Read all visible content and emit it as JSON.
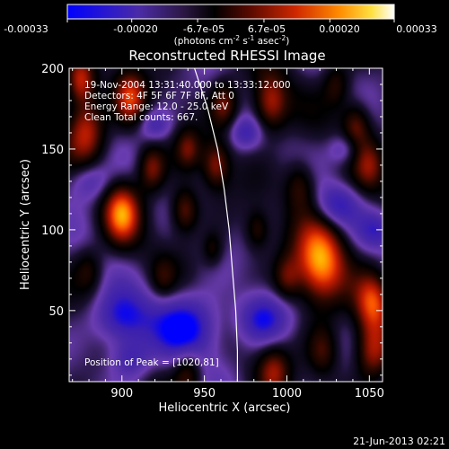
{
  "colorbar": {
    "tick_labels": [
      "-0.00033",
      "-0.00020",
      "-6.7e-05",
      "6.7e-05",
      "0.00020",
      "0.00033"
    ],
    "tick_values": [
      -0.00033,
      -0.0002,
      -6.7e-05,
      6.7e-05,
      0.0002,
      0.00033
    ],
    "range": [
      -0.00033,
      0.00033
    ],
    "units_main": "(photons cm",
    "units_sup1": "-2",
    "units_mid": " s",
    "units_sup2": "-1",
    "units_tail": " asec",
    "units_sup3": "-2",
    "units_close": ")",
    "colormap": [
      "#0000ff",
      "#3a1fb0",
      "#4b2ba6",
      "#6a3cb0",
      "#1a1030",
      "#000000",
      "#2a0800",
      "#7a0f00",
      "#c81e00",
      "#ff5a00",
      "#ffb000",
      "#ffff80",
      "#ffffff"
    ]
  },
  "chart_data": {
    "type": "heatmap",
    "title": "Reconstructed RHESSI Image",
    "xlabel": "Heliocentric X (arcsec)",
    "ylabel": "Heliocentric Y (arcsec)",
    "xlim": [
      868,
      1058
    ],
    "ylim": [
      6,
      200
    ],
    "x_ticks": [
      900,
      950,
      1000,
      1050
    ],
    "y_ticks": [
      50,
      100,
      150,
      200
    ],
    "annotations": [
      "19-Nov-2004 13:31:40.000 to 13:33:12.000",
      "Detectors: 4F 5F 6F 7F 8F, Att 0",
      "Energy Range: 12.0 - 25.0 keV",
      "Clean    Total counts: 667."
    ],
    "peak_label": "Position of Peak = [1020,81]",
    "peak": [
      1020,
      81
    ],
    "limb_curve": [
      [
        944,
        200
      ],
      [
        952,
        175
      ],
      [
        958,
        150
      ],
      [
        962,
        125
      ],
      [
        965,
        100
      ],
      [
        967,
        75
      ],
      [
        969,
        50
      ],
      [
        970,
        25
      ],
      [
        970,
        6
      ]
    ],
    "sources": [
      [
        1020,
        81,
        0.00033,
        14
      ],
      [
        900,
        110,
        0.00028,
        10
      ],
      [
        878,
        162,
        0.00024,
        11
      ],
      [
        905,
        182,
        0.00022,
        9
      ],
      [
        875,
        192,
        0.00022,
        8
      ],
      [
        938,
        112,
        0.00018,
        8
      ],
      [
        918,
        138,
        0.00018,
        8
      ],
      [
        940,
        150,
        0.00014,
        7
      ],
      [
        957,
        140,
        0.00018,
        8
      ],
      [
        962,
        178,
        0.00016,
        8
      ],
      [
        1008,
        128,
        0.00014,
        9
      ],
      [
        1050,
        140,
        0.00014,
        9
      ],
      [
        1052,
        55,
        0.00024,
        10
      ],
      [
        1052,
        25,
        0.0002,
        10
      ],
      [
        1022,
        25,
        0.00014,
        9
      ],
      [
        992,
        12,
        0.00016,
        9
      ],
      [
        940,
        12,
        0.00014,
        8
      ],
      [
        990,
        178,
        0.00022,
        10
      ],
      [
        1030,
        190,
        0.00012,
        8
      ],
      [
        1042,
        165,
        0.00016,
        8
      ],
      [
        1000,
        70,
        0.00014,
        8
      ],
      [
        982,
        100,
        0.00012,
        7
      ],
      [
        880,
        75,
        0.0001,
        8
      ],
      [
        925,
        70,
        8e-05,
        7
      ],
      [
        955,
        88,
        0.0001,
        6
      ]
    ],
    "negatives": [
      [
        940,
        40,
        0.00022,
        14
      ],
      [
        900,
        45,
        0.0002,
        12
      ],
      [
        985,
        45,
        0.00018,
        11
      ],
      [
        880,
        130,
        0.00014,
        9
      ],
      [
        1030,
        115,
        0.00015,
        9
      ],
      [
        1055,
        100,
        0.00013,
        8
      ],
      [
        1035,
        150,
        0.00012,
        7
      ],
      [
        975,
        160,
        0.00012,
        7
      ],
      [
        920,
        165,
        0.00012,
        7
      ],
      [
        905,
        20,
        0.00014,
        9
      ]
    ]
  },
  "footer": {
    "date": "21-Jun-2013 02:21"
  }
}
